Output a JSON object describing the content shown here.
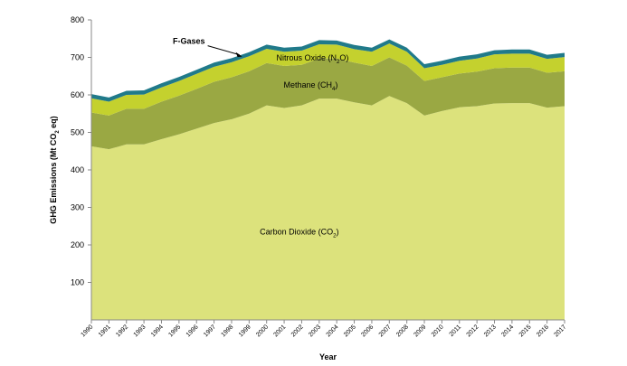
{
  "chart_data": {
    "type": "area",
    "stacked": true,
    "x": [
      1990,
      1991,
      1992,
      1993,
      1994,
      1995,
      1996,
      1997,
      1998,
      1999,
      2000,
      2001,
      2002,
      2003,
      2004,
      2005,
      2006,
      2007,
      2008,
      2009,
      2010,
      2011,
      2012,
      2013,
      2014,
      2015,
      2016,
      2017
    ],
    "x_tick_labels": [
      "1990",
      "1991",
      "1992",
      "1993",
      "1994",
      "1995",
      "1996",
      "1997",
      "1998",
      "1999",
      "2000",
      "2001",
      "2002",
      "2003",
      "2004",
      "2005",
      "2006",
      "2007",
      "2008",
      "2009",
      "2010",
      "2011",
      "2012",
      "2013",
      "2014",
      "2015",
      "2016",
      "2017"
    ],
    "y_ticks": [
      100,
      200,
      300,
      400,
      500,
      600,
      700,
      800
    ],
    "ylim": [
      0,
      800
    ],
    "xlabel": "Year",
    "ylabel_parts": {
      "before": "GHG Emissions  (Mt CO",
      "sub": "2",
      "after": " eq)"
    },
    "grid": false,
    "legend": "none",
    "series": [
      {
        "key": "co2",
        "name_parts": {
          "before": "Carbon Dioxide (CO",
          "sub": "2",
          "after": ")"
        },
        "color": "#dce27c",
        "values": [
          463,
          455,
          468,
          468,
          482,
          495,
          510,
          525,
          535,
          550,
          572,
          565,
          572,
          590,
          590,
          580,
          572,
          597,
          578,
          545,
          557,
          567,
          570,
          577,
          578,
          578,
          566,
          570
        ]
      },
      {
        "key": "ch4",
        "name_parts": {
          "before": "Methane (CH",
          "sub": "4",
          "after": ")"
        },
        "color": "#9aa843",
        "values": [
          90,
          90,
          95,
          95,
          100,
          103,
          106,
          110,
          112,
          113,
          113,
          112,
          108,
          107,
          107,
          106,
          105,
          103,
          100,
          92,
          90,
          90,
          92,
          94,
          95,
          95,
          93,
          93
        ]
      },
      {
        "key": "n2o",
        "name_parts": {
          "before": "Nitrous Oxide (N",
          "sub": "2",
          "after": "O)"
        },
        "color": "#c4d12e",
        "values": [
          38,
          37,
          37,
          38,
          38,
          39,
          40,
          40,
          40,
          40,
          38,
          38,
          38,
          38,
          37,
          36,
          38,
          37,
          37,
          34,
          33,
          34,
          35,
          37,
          37,
          37,
          37,
          38
        ]
      },
      {
        "key": "fgases",
        "name_parts": {
          "before": "F-Gases",
          "sub": "",
          "after": ""
        },
        "color": "#207a8a",
        "values": [
          11,
          11,
          11,
          11,
          11,
          11,
          11,
          11,
          11,
          11,
          11,
          11,
          11,
          11,
          11,
          11,
          11,
          11,
          11,
          11,
          11,
          11,
          11,
          11,
          11,
          11,
          11,
          11
        ]
      }
    ]
  }
}
